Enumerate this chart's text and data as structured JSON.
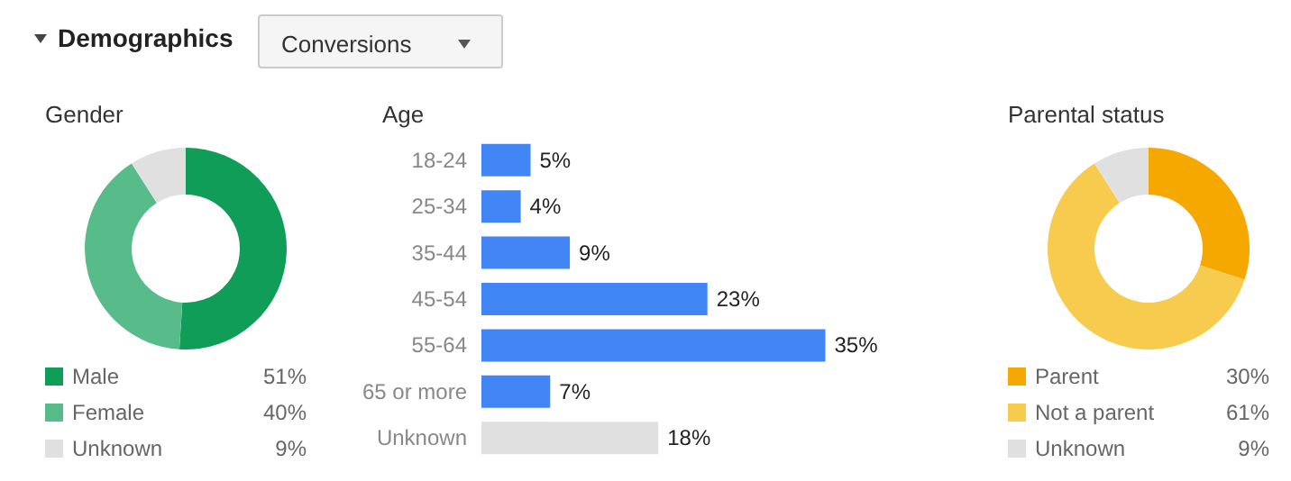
{
  "chart_data": [
    {
      "type": "other",
      "title": "Demographics",
      "annotations": [
        "Conversions"
      ]
    },
    {
      "type": "donut",
      "title": "Gender",
      "categories": [
        "Male",
        "Female",
        "Unknown"
      ],
      "values": [
        51,
        40,
        9
      ],
      "value_labels": [
        "51%",
        "40%",
        "9%"
      ],
      "colors": [
        "#0f9d58",
        "#57bb8a",
        "#e0e0e0"
      ],
      "legend": "bottom"
    },
    {
      "type": "bar",
      "orientation": "horizontal",
      "title": "Age",
      "categories": [
        "18-24",
        "25-34",
        "35-44",
        "45-54",
        "55-64",
        "65 or more",
        "Unknown"
      ],
      "values": [
        5,
        4,
        9,
        23,
        35,
        7,
        18
      ],
      "value_labels": [
        "5%",
        "4%",
        "9%",
        "23%",
        "35%",
        "7%",
        "18%"
      ],
      "colors": [
        "#4285f4",
        "#4285f4",
        "#4285f4",
        "#4285f4",
        "#4285f4",
        "#4285f4",
        "#e0e0e0"
      ]
    },
    {
      "type": "donut",
      "title": "Parental status",
      "categories": [
        "Parent",
        "Not a parent",
        "Unknown"
      ],
      "values": [
        30,
        61,
        9
      ],
      "value_labels": [
        "30%",
        "61%",
        "9%"
      ],
      "colors": [
        "#f4a800",
        "#f7cb4d",
        "#e0e0e0"
      ],
      "legend": "bottom"
    }
  ]
}
